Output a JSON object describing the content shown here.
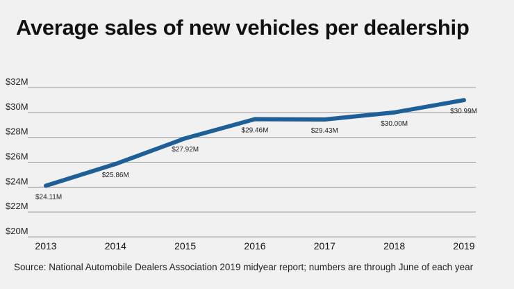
{
  "chart_data": {
    "type": "line",
    "title": "Average sales of new vehicles per dealership",
    "categories": [
      "2013",
      "2014",
      "2015",
      "2016",
      "2017",
      "2018",
      "2019"
    ],
    "series": [
      {
        "name": "Average sales",
        "values": [
          24.11,
          25.86,
          27.92,
          29.46,
          29.43,
          30.0,
          30.99
        ],
        "labels": [
          "$24.11M",
          "$25.86M",
          "$27.92M",
          "$29.46M",
          "$29.43M",
          "$30.00M",
          "$30.99M"
        ]
      }
    ],
    "yticks": [
      20,
      22,
      24,
      26,
      28,
      30,
      32
    ],
    "ytick_labels": [
      "$20M",
      "$22M",
      "$24M",
      "$26M",
      "$28M",
      "$30M",
      "$32M"
    ],
    "ylim": [
      20,
      32
    ],
    "xlabel": "",
    "ylabel": "",
    "grid": true,
    "line_color": "#1f5f98",
    "grid_color": "#9a9a9a"
  },
  "source": "Source: National Automobile Dealers Association 2019 midyear report; numbers are through June of each year"
}
